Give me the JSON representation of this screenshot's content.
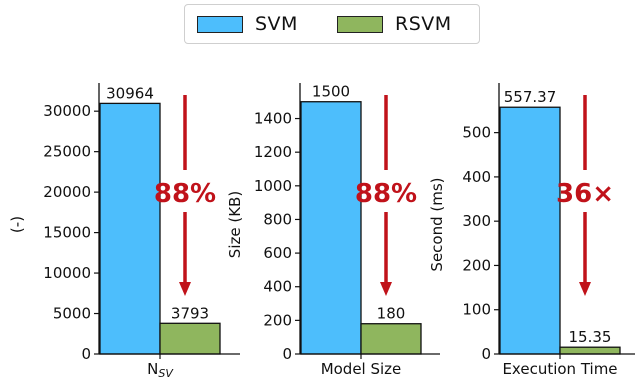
{
  "legend": [
    {
      "name": "SVM",
      "color": "#4dbefc"
    },
    {
      "name": "RSVM",
      "color": "#8fb65e"
    }
  ],
  "colors": {
    "arrow": "#c0121a",
    "svm": "#4dbefc",
    "rsvm": "#8fb65e"
  },
  "chart_data": [
    {
      "type": "bar",
      "categories": [
        "N_SV"
      ],
      "x_tick_main": "N",
      "x_tick_sub": "SV",
      "ylabel": "(-)",
      "ylim": [
        0,
        32000
      ],
      "yticks": [
        0,
        5000,
        10000,
        15000,
        20000,
        25000,
        30000
      ],
      "series": [
        {
          "name": "SVM",
          "values": [
            30964
          ],
          "label": "30964"
        },
        {
          "name": "RSVM",
          "values": [
            3793
          ],
          "label": "3793"
        }
      ],
      "annotation": "88%"
    },
    {
      "type": "bar",
      "categories": [
        "Model Size"
      ],
      "x_tick_main": "Model Size",
      "x_tick_sub": "",
      "ylabel": "Size (KB)",
      "ylim": [
        0,
        1540
      ],
      "yticks": [
        0,
        200,
        400,
        600,
        800,
        1000,
        1200,
        1400
      ],
      "series": [
        {
          "name": "SVM",
          "values": [
            1500
          ],
          "label": "1500"
        },
        {
          "name": "RSVM",
          "values": [
            180
          ],
          "label": "180"
        }
      ],
      "annotation": "88%"
    },
    {
      "type": "bar",
      "categories": [
        "Execution Time"
      ],
      "x_tick_main": "Execution Time",
      "x_tick_sub": "",
      "ylabel": "Second (ms)",
      "ylim": [
        0,
        585
      ],
      "yticks": [
        0,
        100,
        200,
        300,
        400,
        500
      ],
      "series": [
        {
          "name": "SVM",
          "values": [
            557.37
          ],
          "label": "557.37"
        },
        {
          "name": "RSVM",
          "values": [
            15.35
          ],
          "label": "15.35"
        }
      ],
      "annotation": "36×"
    }
  ]
}
